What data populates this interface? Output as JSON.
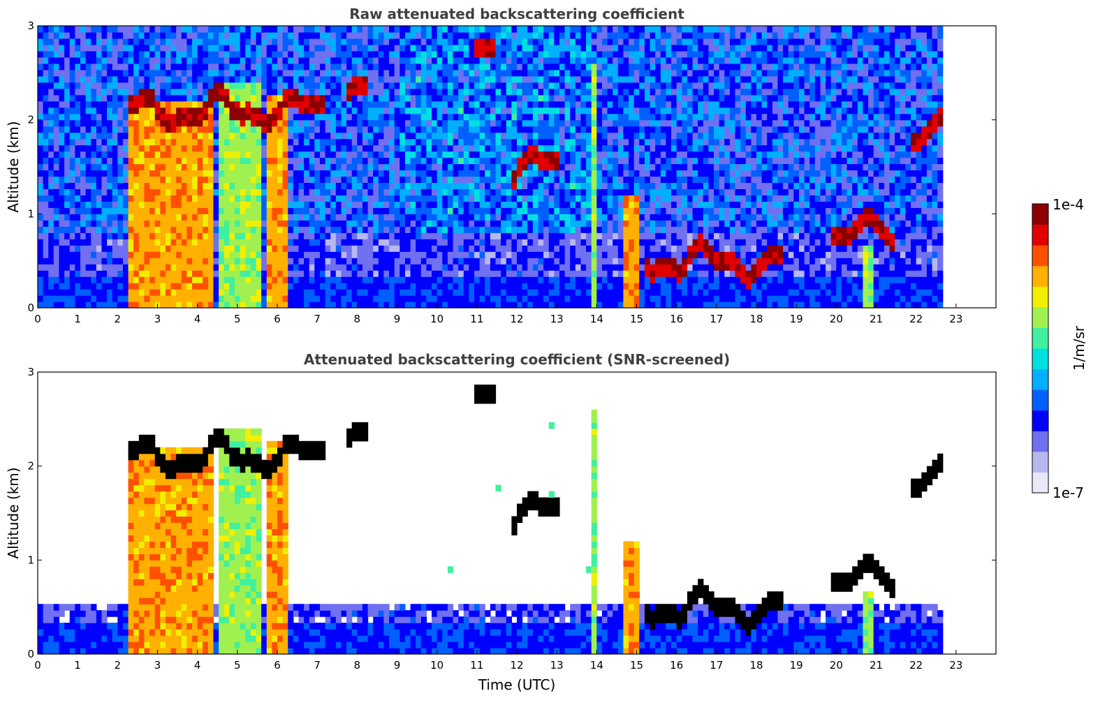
{
  "chart_data": [
    {
      "type": "heatmap",
      "title": "Raw attenuated backscattering coefficient",
      "xlabel": "",
      "ylabel": "Altitude (km)",
      "xlim": [
        0,
        24
      ],
      "ylim": [
        0,
        3
      ],
      "x_ticks": [
        "0",
        "1",
        "2",
        "3",
        "4",
        "5",
        "6",
        "7",
        "8",
        "9",
        "10",
        "11",
        "12",
        "13",
        "14",
        "15",
        "16",
        "17",
        "18",
        "19",
        "20",
        "21",
        "22",
        "23"
      ],
      "y_ticks": [
        "0",
        "1",
        "2",
        "3"
      ],
      "data_end_hour": 22.6,
      "features": [
        {
          "kind": "low_cloud_column",
          "x_start": 2.25,
          "x_end": 4.4,
          "top_km": 2.2,
          "level": "high"
        },
        {
          "kind": "low_cloud_column",
          "x_start": 4.6,
          "x_end": 5.6,
          "top_km": 2.4,
          "level": "medium"
        },
        {
          "kind": "low_cloud_column",
          "x_start": 5.8,
          "x_end": 6.3,
          "top_km": 2.3,
          "level": "high"
        },
        {
          "kind": "low_cloud_column",
          "x_start": 13.85,
          "x_end": 14.05,
          "top_km": 2.6,
          "level": "medium"
        },
        {
          "kind": "low_cloud_column",
          "x_start": 14.6,
          "x_end": 15.1,
          "top_km": 1.2,
          "level": "high"
        },
        {
          "kind": "low_cloud_column",
          "x_start": 20.6,
          "x_end": 20.9,
          "top_km": 0.65,
          "level": "medium"
        },
        {
          "kind": "cloud_layer",
          "x_start": 2.2,
          "x_end": 7.2,
          "altitude_km": 2.1,
          "level": "peak"
        },
        {
          "kind": "cloud_layer",
          "x_start": 7.8,
          "x_end": 8.3,
          "altitude_km": 2.35,
          "level": "peak"
        },
        {
          "kind": "cloud_layer",
          "x_start": 11.0,
          "x_end": 11.5,
          "altitude_km": 2.8,
          "level": "peak"
        },
        {
          "kind": "cloud_layer",
          "x_start": 11.8,
          "x_end": 13.0,
          "altitude_km": 1.5,
          "level": "peak"
        },
        {
          "kind": "cloud_layer",
          "x_start": 15.2,
          "x_end": 18.6,
          "altitude_km": 0.5,
          "level": "peak"
        },
        {
          "kind": "cloud_layer",
          "x_start": 19.8,
          "x_end": 21.5,
          "altitude_km": 0.8,
          "level": "peak"
        },
        {
          "kind": "cloud_layer",
          "x_start": 21.9,
          "x_end": 22.6,
          "altitude_km": 1.9,
          "level": "peak"
        }
      ]
    },
    {
      "type": "heatmap",
      "title": "Attenuated backscattering coefficient (SNR-screened)",
      "xlabel": "Time (UTC)",
      "ylabel": "Altitude (km)",
      "xlim": [
        0,
        24
      ],
      "ylim": [
        0,
        3
      ],
      "x_ticks": [
        "0",
        "1",
        "2",
        "3",
        "4",
        "5",
        "6",
        "7",
        "8",
        "9",
        "10",
        "11",
        "12",
        "13",
        "14",
        "15",
        "16",
        "17",
        "18",
        "19",
        "20",
        "21",
        "22",
        "23"
      ],
      "y_ticks": [
        "0",
        "1",
        "2",
        "3"
      ],
      "data_end_hour": 22.6,
      "screened": true
    }
  ],
  "colorbar": {
    "label": "1/m/sr",
    "max_label": "1e-4",
    "min_label": "1e-7",
    "colors": [
      "#e8e8f8",
      "#b8b8f0",
      "#7070f0",
      "#0000ff",
      "#0060ff",
      "#00b0ff",
      "#00e0e0",
      "#40f0a0",
      "#a0f050",
      "#f0f000",
      "#ffb000",
      "#ff5000",
      "#e00000",
      "#8b0000"
    ]
  }
}
